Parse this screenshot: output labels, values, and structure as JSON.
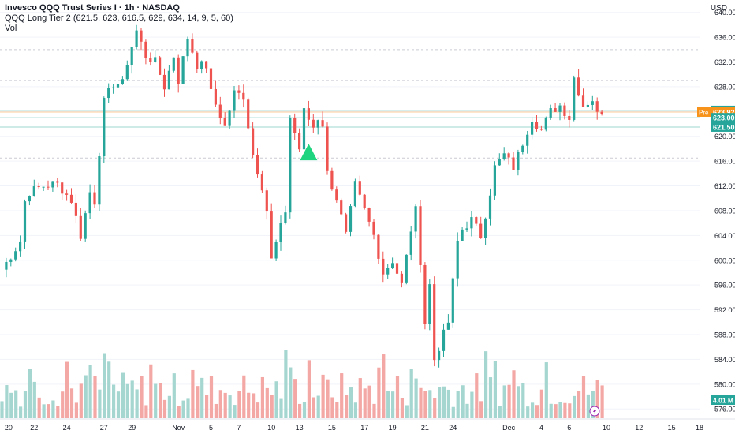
{
  "header": {
    "symbol_title": "Invesco QQQ Trust Series I · 1h · NASDAQ",
    "indicator": "QQQ Long Tier 2 (621.5, 623, 616.5, 629, 634, 14, 9, 5, 60)",
    "volume_label": "Vol",
    "currency": "USD"
  },
  "colors": {
    "up": "#26a69a",
    "down": "#ef5350",
    "vol_up": "#a5d6d0",
    "vol_down": "#f4a8a6",
    "marker": "#1fd47e",
    "pre": "#f7931a",
    "grid": "#c9ccd3"
  },
  "chart_data": {
    "type": "candlestick",
    "y_axis": {
      "ylim": [
        574.5,
        642.0
      ],
      "ticks": [
        576,
        580,
        584,
        588,
        592,
        596,
        600,
        604,
        608,
        612,
        616,
        620,
        624,
        628,
        632,
        636,
        640
      ],
      "tick_labels": [
        "576.00",
        "580.00",
        "584.00",
        "588.00",
        "592.00",
        "596.00",
        "600.00",
        "604.00",
        "608.00",
        "612.00",
        "616.00",
        "620.00",
        "624.00",
        "628.00",
        "632.00",
        "636.00",
        "640.00"
      ]
    },
    "x_axis": {
      "labels": [
        "20",
        "22",
        "24",
        "27",
        "29",
        "Nov",
        "5",
        "7",
        "10",
        "13",
        "15",
        "17",
        "19",
        "21",
        "24",
        "Dec",
        "4",
        "6",
        "10",
        "12",
        "15",
        "18"
      ],
      "label_bars": [
        1.5,
        7,
        14,
        22,
        28,
        38,
        45,
        51,
        58,
        64,
        71,
        78,
        84,
        91,
        97,
        109,
        116,
        122,
        130,
        137,
        144,
        150
      ]
    },
    "horizontal_levels": [
      {
        "value": 624.18,
        "label": "624.18",
        "color": "#26a69a",
        "line": "solid"
      },
      {
        "value": 623.92,
        "label": "623.92",
        "tag": "Pre",
        "color": "#f7931a",
        "line": "solid"
      },
      {
        "value": 623.0,
        "label": "623.00",
        "color": "#26a69a",
        "line": "solid"
      },
      {
        "value": 621.5,
        "label": "621.50",
        "color": "#26a69a",
        "line": "solid"
      },
      {
        "value": 634.0,
        "line": "dashed"
      },
      {
        "value": 629.0,
        "line": "dashed"
      },
      {
        "value": 616.5,
        "line": "dashed"
      }
    ],
    "signal_marker": {
      "bar": 66,
      "price": 617.4,
      "shape": "triangle-up"
    },
    "volume_badge": {
      "label": "4.01 M",
      "color": "#26a69a"
    },
    "close_path": [
      [
        0,
        598.5
      ],
      [
        4,
        603
      ],
      [
        5,
        609.5
      ],
      [
        6,
        611
      ],
      [
        9,
        612
      ],
      [
        12,
        612.3
      ],
      [
        15,
        609.7
      ],
      [
        17,
        604
      ],
      [
        19,
        611
      ],
      [
        20,
        609.5
      ],
      [
        22,
        625.5
      ],
      [
        24,
        628.5
      ],
      [
        26,
        628.5
      ],
      [
        27,
        632
      ],
      [
        29,
        637
      ],
      [
        31,
        633
      ],
      [
        33,
        632
      ],
      [
        35,
        628
      ],
      [
        37,
        633
      ],
      [
        38,
        629
      ],
      [
        40,
        636
      ],
      [
        42,
        631.5
      ],
      [
        44,
        631.4
      ],
      [
        45,
        627
      ],
      [
        48,
        621.5
      ],
      [
        50,
        627
      ],
      [
        52,
        626.5
      ],
      [
        54,
        617
      ],
      [
        56,
        612
      ],
      [
        57,
        608
      ],
      [
        58,
        600
      ],
      [
        61,
        608
      ],
      [
        62,
        623
      ],
      [
        64,
        618
      ],
      [
        65,
        624
      ],
      [
        67,
        621.5
      ],
      [
        68,
        623
      ],
      [
        69,
        622
      ],
      [
        70,
        614
      ],
      [
        72,
        610
      ],
      [
        74,
        604
      ],
      [
        76,
        612
      ],
      [
        78,
        608
      ],
      [
        80,
        604
      ],
      [
        82,
        598
      ],
      [
        84,
        600
      ],
      [
        86,
        596
      ],
      [
        88,
        605
      ],
      [
        89,
        608
      ],
      [
        90,
        600
      ],
      [
        91,
        590
      ],
      [
        92,
        596
      ],
      [
        93,
        584
      ],
      [
        95,
        588
      ],
      [
        96,
        590
      ],
      [
        98,
        603
      ],
      [
        99,
        605
      ],
      [
        101,
        606.5
      ],
      [
        103,
        604
      ],
      [
        105,
        611
      ],
      [
        106,
        615
      ],
      [
        108,
        617
      ],
      [
        110,
        615
      ],
      [
        112,
        619
      ],
      [
        114,
        623
      ],
      [
        116,
        621
      ],
      [
        118,
        624
      ],
      [
        120,
        625
      ],
      [
        122,
        623
      ],
      [
        123,
        629.5
      ],
      [
        125,
        625
      ],
      [
        127,
        626
      ],
      [
        128,
        623.5
      ],
      [
        129,
        624.2
      ]
    ],
    "volume_relative_range": [
      0.15,
      1.0
    ]
  }
}
